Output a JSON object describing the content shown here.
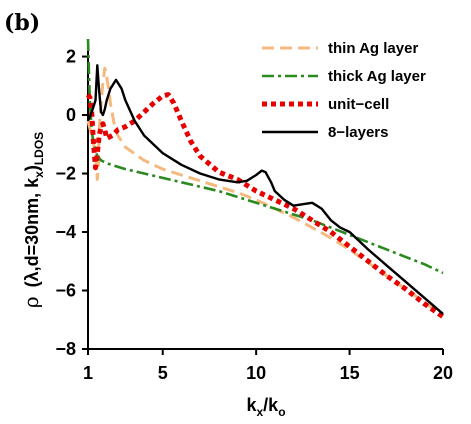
{
  "chart_data": {
    "type": "line",
    "panel_label": "(b)",
    "x_tick_labels": [
      "1",
      "5",
      "10",
      "15",
      "20"
    ],
    "y_tick_labels": [
      "2",
      "0",
      "−2",
      "−4",
      "−6",
      "−8"
    ],
    "x_ticks": [
      1,
      5,
      10,
      15,
      20
    ],
    "y_ticks": [
      2,
      0,
      -2,
      -4,
      -6,
      -8
    ],
    "xlim": [
      1,
      20
    ],
    "ylim": [
      -8,
      2.6
    ],
    "grid": false,
    "legend_position": "top-right",
    "series": [
      {
        "name": "thin Ag layer",
        "color": "#f4b97f",
        "style": "dashed",
        "x": [
          1.0,
          1.2,
          1.4,
          1.5,
          1.55,
          1.6,
          1.7,
          1.8,
          1.9,
          2.0,
          2.1,
          2.2,
          2.4,
          2.6,
          3.0,
          4.0,
          5.0,
          6.0,
          7.0,
          8.0,
          9.0,
          10.0,
          11.0,
          12.0,
          13.0,
          14.0,
          15.0,
          16.0,
          17.0,
          18.0,
          19.0,
          20.0
        ],
        "y": [
          -0.2,
          -0.7,
          -1.3,
          -2.2,
          -1.8,
          -0.5,
          0.4,
          1.1,
          1.6,
          1.3,
          0.9,
          0.4,
          -0.3,
          -0.7,
          -1.1,
          -1.55,
          -1.85,
          -2.05,
          -2.25,
          -2.45,
          -2.65,
          -2.9,
          -3.2,
          -3.5,
          -3.85,
          -4.2,
          -4.6,
          -5.05,
          -5.5,
          -5.95,
          -6.4,
          -6.85
        ]
      },
      {
        "name": "thick Ag layer",
        "color": "#2a8a1f",
        "style": "dash-dot",
        "x": [
          1.0,
          1.05,
          1.1,
          1.2,
          1.3,
          1.5,
          1.7,
          2.0,
          2.5,
          3.0,
          4.0,
          5.0,
          6.0,
          7.0,
          8.0,
          9.0,
          10.0,
          11.0,
          12.0,
          13.0,
          14.0,
          15.0,
          16.0,
          17.0,
          18.0,
          19.0,
          20.0
        ],
        "y": [
          2.8,
          1.5,
          0.4,
          -0.5,
          -1.0,
          -1.4,
          -1.55,
          -1.65,
          -1.75,
          -1.85,
          -2.0,
          -2.15,
          -2.3,
          -2.45,
          -2.6,
          -2.8,
          -3.0,
          -3.2,
          -3.4,
          -3.6,
          -3.85,
          -4.1,
          -4.35,
          -4.6,
          -4.85,
          -5.1,
          -5.4
        ]
      },
      {
        "name": "unit−cell",
        "color": "#e60000",
        "style": "dotted",
        "x": [
          1.0,
          1.1,
          1.2,
          1.3,
          1.4,
          1.5,
          1.6,
          1.7,
          1.8,
          1.9,
          2.0,
          2.3,
          2.6,
          3.0,
          3.5,
          4.0,
          4.5,
          5.0,
          5.3,
          5.6,
          6.0,
          6.5,
          7.0,
          8.0,
          9.0,
          10.0,
          11.0,
          12.0,
          13.0,
          14.0,
          15.0,
          16.0,
          17.0,
          18.0,
          19.0,
          20.0
        ],
        "y": [
          0.7,
          0.6,
          0.1,
          -1.0,
          -1.8,
          -1.3,
          -0.7,
          -0.4,
          -0.3,
          -0.5,
          -0.8,
          -0.7,
          -0.5,
          -0.4,
          -0.2,
          0.1,
          0.4,
          0.65,
          0.7,
          0.4,
          -0.2,
          -0.9,
          -1.4,
          -1.95,
          -2.2,
          -2.6,
          -2.9,
          -3.2,
          -3.6,
          -4.0,
          -4.5,
          -5.0,
          -5.5,
          -5.95,
          -6.45,
          -6.9
        ]
      },
      {
        "name": "8−layers",
        "color": "#000000",
        "style": "solid",
        "x": [
          1.0,
          1.2,
          1.4,
          1.5,
          1.6,
          1.7,
          1.8,
          1.9,
          2.0,
          2.2,
          2.5,
          2.8,
          3.0,
          3.5,
          4.0,
          5.0,
          6.0,
          7.0,
          8.0,
          9.0,
          9.5,
          10.0,
          10.3,
          10.5,
          10.8,
          11.0,
          11.5,
          12.0,
          12.5,
          13.0,
          13.5,
          14.0,
          14.5,
          15.0,
          16.0,
          17.0,
          18.0,
          19.0,
          20.0
        ],
        "y": [
          -0.2,
          0.1,
          0.5,
          1.7,
          0.8,
          0.1,
          0.0,
          0.2,
          0.5,
          0.9,
          1.2,
          0.9,
          0.5,
          -0.2,
          -0.7,
          -1.3,
          -1.7,
          -2.0,
          -2.2,
          -2.3,
          -2.25,
          -2.05,
          -1.9,
          -1.95,
          -2.3,
          -2.6,
          -2.9,
          -3.1,
          -3.05,
          -3.0,
          -3.2,
          -3.6,
          -3.85,
          -4.0,
          -4.6,
          -5.15,
          -5.7,
          -6.25,
          -6.8
        ]
      }
    ]
  }
}
